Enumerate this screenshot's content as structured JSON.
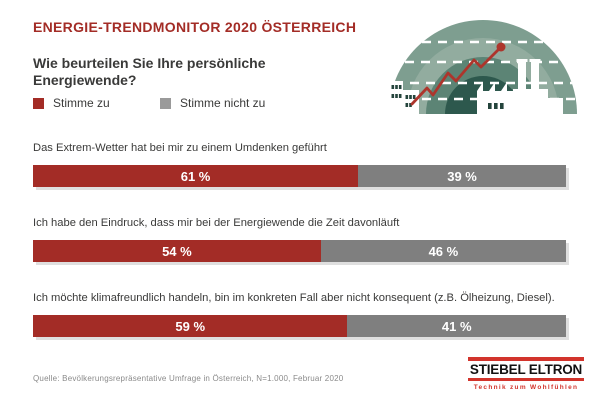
{
  "header": {
    "title": "ENERGIE-TRENDMONITOR 2020 ÖSTERREICH",
    "question": "Wie beurteilen Sie Ihre persönliche Energiewende?"
  },
  "legend": {
    "agree": "Stimme zu",
    "disagree": "Stimme nicht zu"
  },
  "chart_data": {
    "type": "bar",
    "orientation": "horizontal",
    "stacked": true,
    "unit": "%",
    "xlim": [
      0,
      100
    ],
    "value_suffix": " %",
    "categories": [
      "Das Extrem-Wetter hat bei mir zu einem Umdenken geführt",
      "Ich habe den Eindruck, dass mir bei der Energiewende die Zeit davonläuft",
      "Ich möchte klimafreundlich handeln, bin im konkreten Fall aber nicht konsequent (z.B. Ölheizung, Diesel)."
    ],
    "series": [
      {
        "key": "agree",
        "name": "Stimme zu",
        "color": "#A32C26",
        "values": [
          61,
          54,
          59
        ]
      },
      {
        "key": "disagree",
        "name": "Stimme nicht zu",
        "color": "#7F7F7F",
        "values": [
          39,
          46,
          41
        ]
      }
    ],
    "legend_position": "top-left",
    "grid": false
  },
  "footer": {
    "source": "Quelle: Bevölkerungsrepräsentative Umfrage in Österreich, N=1.000, Februar 2020"
  },
  "logo": {
    "name": "STIEBEL ELTRON",
    "slogan": "Technik zum Wohlfühlen"
  },
  "colors": {
    "accent_red": "#A32C26",
    "bar_gray": "#7F7F7F",
    "legend_gray": "#9A9A9A",
    "logo_red": "#D2342C",
    "text_dark": "#3A3A39",
    "source_gray": "#8A8A8A",
    "trend_line_red": "#AD352C",
    "illustration_rings": [
      "#7E9E90",
      "#92AC9F",
      "#5C8475",
      "#2D584D"
    ]
  },
  "illustration": {
    "description": "city-skyline-with-rising-energy-trend"
  }
}
